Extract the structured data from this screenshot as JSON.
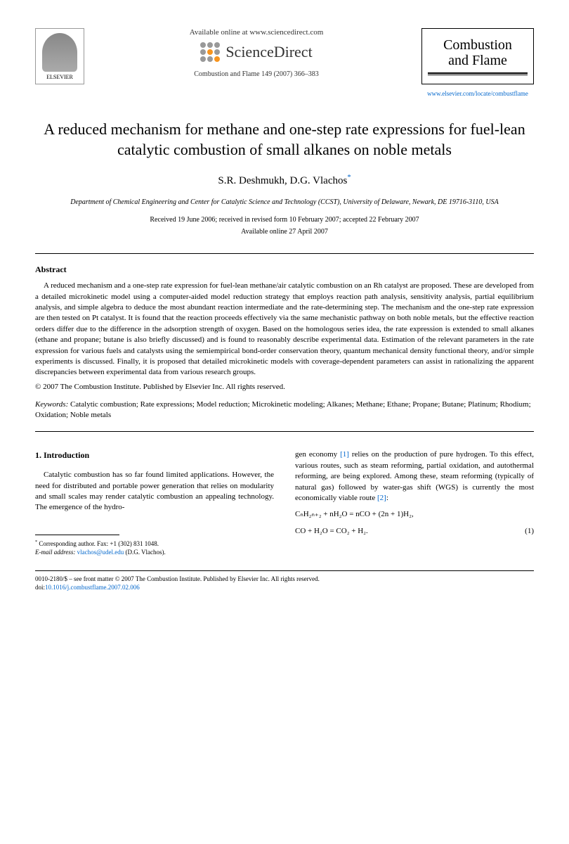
{
  "header": {
    "elsevier": "ELSEVIER",
    "available": "Available online at www.sciencedirect.com",
    "scienceDirect": "ScienceDirect",
    "journalRef": "Combustion and Flame 149 (2007) 366–383",
    "journalName1": "Combustion",
    "journalName2": "and Flame",
    "journalUrl": "www.elsevier.com/locate/combustflame"
  },
  "title": "A reduced mechanism for methane and one-step rate expressions for fuel-lean catalytic combustion of small alkanes on noble metals",
  "authors": "S.R. Deshmukh, D.G. Vlachos",
  "authorMark": "*",
  "affiliation": "Department of Chemical Engineering and Center for Catalytic Science and Technology (CCST), University of Delaware, Newark, DE 19716-3110, USA",
  "dates": "Received 19 June 2006; received in revised form 10 February 2007; accepted 22 February 2007",
  "availableDate": "Available online 27 April 2007",
  "abstractHeading": "Abstract",
  "abstractText": "A reduced mechanism and a one-step rate expression for fuel-lean methane/air catalytic combustion on an Rh catalyst are proposed. These are developed from a detailed microkinetic model using a computer-aided model reduction strategy that employs reaction path analysis, sensitivity analysis, partial equilibrium analysis, and simple algebra to deduce the most abundant reaction intermediate and the rate-determining step. The mechanism and the one-step rate expression are then tested on Pt catalyst. It is found that the reaction proceeds effectively via the same mechanistic pathway on both noble metals, but the effective reaction orders differ due to the difference in the adsorption strength of oxygen. Based on the homologous series idea, the rate expression is extended to small alkanes (ethane and propane; butane is also briefly discussed) and is found to reasonably describe experimental data. Estimation of the relevant parameters in the rate expression for various fuels and catalysts using the semiempirical bond-order conservation theory, quantum mechanical density functional theory, and/or simple experiments is discussed. Finally, it is proposed that detailed microkinetic models with coverage-dependent parameters can assist in rationalizing the apparent discrepancies between experimental data from various research groups.",
  "copyright": "© 2007 The Combustion Institute. Published by Elsevier Inc. All rights reserved.",
  "keywordsLabel": "Keywords:",
  "keywords": " Catalytic combustion; Rate expressions; Model reduction; Microkinetic modeling; Alkanes; Methane; Ethane; Propane; Butane; Platinum; Rhodium; Oxidation; Noble metals",
  "introHeading": "1. Introduction",
  "introText": "Catalytic combustion has so far found limited applications. However, the need for distributed and portable power generation that relies on modularity and small scales may render catalytic combustion an appealing technology. The emergence of the hydro-",
  "col2Text1": "gen economy ",
  "col2Ref1": "[1]",
  "col2Text2": " relies on the production of pure hydrogen. To this effect, various routes, such as steam reforming, partial oxidation, and autothermal reforming, are being explored. Among these, steam reforming (typically of natural gas) followed by water-gas shift (WGS) is currently the most economically viable route ",
  "col2Ref2": "[2]",
  "col2Text3": ":",
  "eq1": "CₙH₂ₙ₊₂ + nH₂O = nCO + (2n + 1)H₂,",
  "eq2": "CO + H₂O = CO₂ + H₂.",
  "eqNum": "(1)",
  "footnote": {
    "corresponding": "Corresponding author. Fax: +1 (302) 831 1048.",
    "emailLabel": "E-mail address:",
    "email": "vlachos@udel.edu",
    "emailName": " (D.G. Vlachos)."
  },
  "bottom": {
    "issn": "0010-2180/$ – see front matter  © 2007 The Combustion Institute. Published by Elsevier Inc. All rights reserved.",
    "doiLabel": "doi:",
    "doi": "10.1016/j.combustflame.2007.02.006"
  }
}
